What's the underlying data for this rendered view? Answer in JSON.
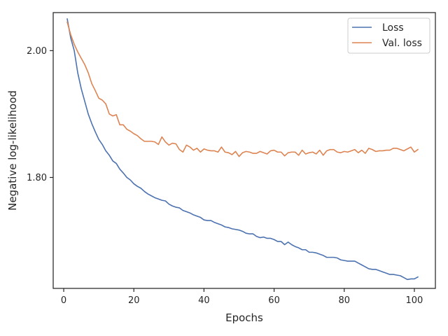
{
  "chart_data": {
    "type": "line",
    "title": "",
    "xlabel": "Epochs",
    "ylabel": "Negative log-likelihood",
    "xlim": [
      -3,
      106
    ],
    "ylim": [
      1.625,
      2.06
    ],
    "xticks": [
      0,
      20,
      40,
      60,
      80,
      100
    ],
    "xtick_labels": [
      "0",
      "20",
      "40",
      "60",
      "80",
      "100"
    ],
    "yticks": [
      1.8,
      2.0
    ],
    "ytick_labels": [
      "1.80",
      "2.00"
    ],
    "grid": false,
    "legend_position": "top-right",
    "x": [
      1,
      2,
      3,
      4,
      5,
      6,
      7,
      8,
      9,
      10,
      11,
      12,
      13,
      14,
      15,
      16,
      17,
      18,
      19,
      20,
      21,
      22,
      23,
      24,
      25,
      26,
      27,
      28,
      29,
      30,
      31,
      32,
      33,
      34,
      35,
      36,
      37,
      38,
      39,
      40,
      41,
      42,
      43,
      44,
      45,
      46,
      47,
      48,
      49,
      50,
      51,
      52,
      53,
      54,
      55,
      56,
      57,
      58,
      59,
      60,
      61,
      62,
      63,
      64,
      65,
      66,
      67,
      68,
      69,
      70,
      71,
      72,
      73,
      74,
      75,
      76,
      77,
      78,
      79,
      80,
      81,
      82,
      83,
      84,
      85,
      86,
      87,
      88,
      89,
      90,
      91,
      92,
      93,
      94,
      95,
      96,
      97,
      98,
      99,
      100,
      101
    ],
    "series": [
      {
        "name": "Loss",
        "color": "#4c72b0",
        "values": [
          2.05,
          2.02,
          2.0,
          1.965,
          1.94,
          1.92,
          1.9,
          1.885,
          1.872,
          1.86,
          1.852,
          1.842,
          1.835,
          1.826,
          1.822,
          1.813,
          1.807,
          1.8,
          1.796,
          1.79,
          1.786,
          1.783,
          1.778,
          1.774,
          1.771,
          1.768,
          1.766,
          1.764,
          1.763,
          1.758,
          1.755,
          1.753,
          1.752,
          1.748,
          1.746,
          1.744,
          1.741,
          1.739,
          1.737,
          1.733,
          1.732,
          1.732,
          1.729,
          1.727,
          1.725,
          1.722,
          1.721,
          1.719,
          1.718,
          1.717,
          1.715,
          1.712,
          1.711,
          1.711,
          1.707,
          1.705,
          1.706,
          1.704,
          1.704,
          1.702,
          1.699,
          1.699,
          1.694,
          1.698,
          1.694,
          1.691,
          1.689,
          1.686,
          1.686,
          1.682,
          1.682,
          1.681,
          1.679,
          1.677,
          1.674,
          1.674,
          1.674,
          1.673,
          1.67,
          1.669,
          1.668,
          1.668,
          1.668,
          1.665,
          1.662,
          1.659,
          1.656,
          1.655,
          1.655,
          1.653,
          1.651,
          1.649,
          1.647,
          1.647,
          1.646,
          1.645,
          1.642,
          1.639,
          1.64,
          1.64,
          1.643
        ]
      },
      {
        "name": "Val. loss",
        "color": "#dd8452",
        "values": [
          2.045,
          2.025,
          2.01,
          1.998,
          1.988,
          1.978,
          1.965,
          1.948,
          1.937,
          1.925,
          1.922,
          1.916,
          1.9,
          1.897,
          1.899,
          1.883,
          1.883,
          1.876,
          1.873,
          1.869,
          1.866,
          1.861,
          1.857,
          1.857,
          1.857,
          1.856,
          1.852,
          1.864,
          1.856,
          1.851,
          1.854,
          1.853,
          1.844,
          1.84,
          1.851,
          1.848,
          1.843,
          1.846,
          1.84,
          1.845,
          1.843,
          1.842,
          1.842,
          1.84,
          1.848,
          1.84,
          1.839,
          1.836,
          1.841,
          1.833,
          1.839,
          1.841,
          1.84,
          1.838,
          1.838,
          1.841,
          1.839,
          1.837,
          1.842,
          1.843,
          1.84,
          1.84,
          1.834,
          1.839,
          1.84,
          1.84,
          1.835,
          1.843,
          1.837,
          1.839,
          1.84,
          1.837,
          1.843,
          1.835,
          1.842,
          1.844,
          1.844,
          1.84,
          1.839,
          1.841,
          1.84,
          1.842,
          1.844,
          1.839,
          1.843,
          1.838,
          1.846,
          1.844,
          1.841,
          1.842,
          1.842,
          1.843,
          1.843,
          1.846,
          1.846,
          1.844,
          1.842,
          1.845,
          1.848,
          1.84,
          1.844
        ]
      }
    ]
  }
}
